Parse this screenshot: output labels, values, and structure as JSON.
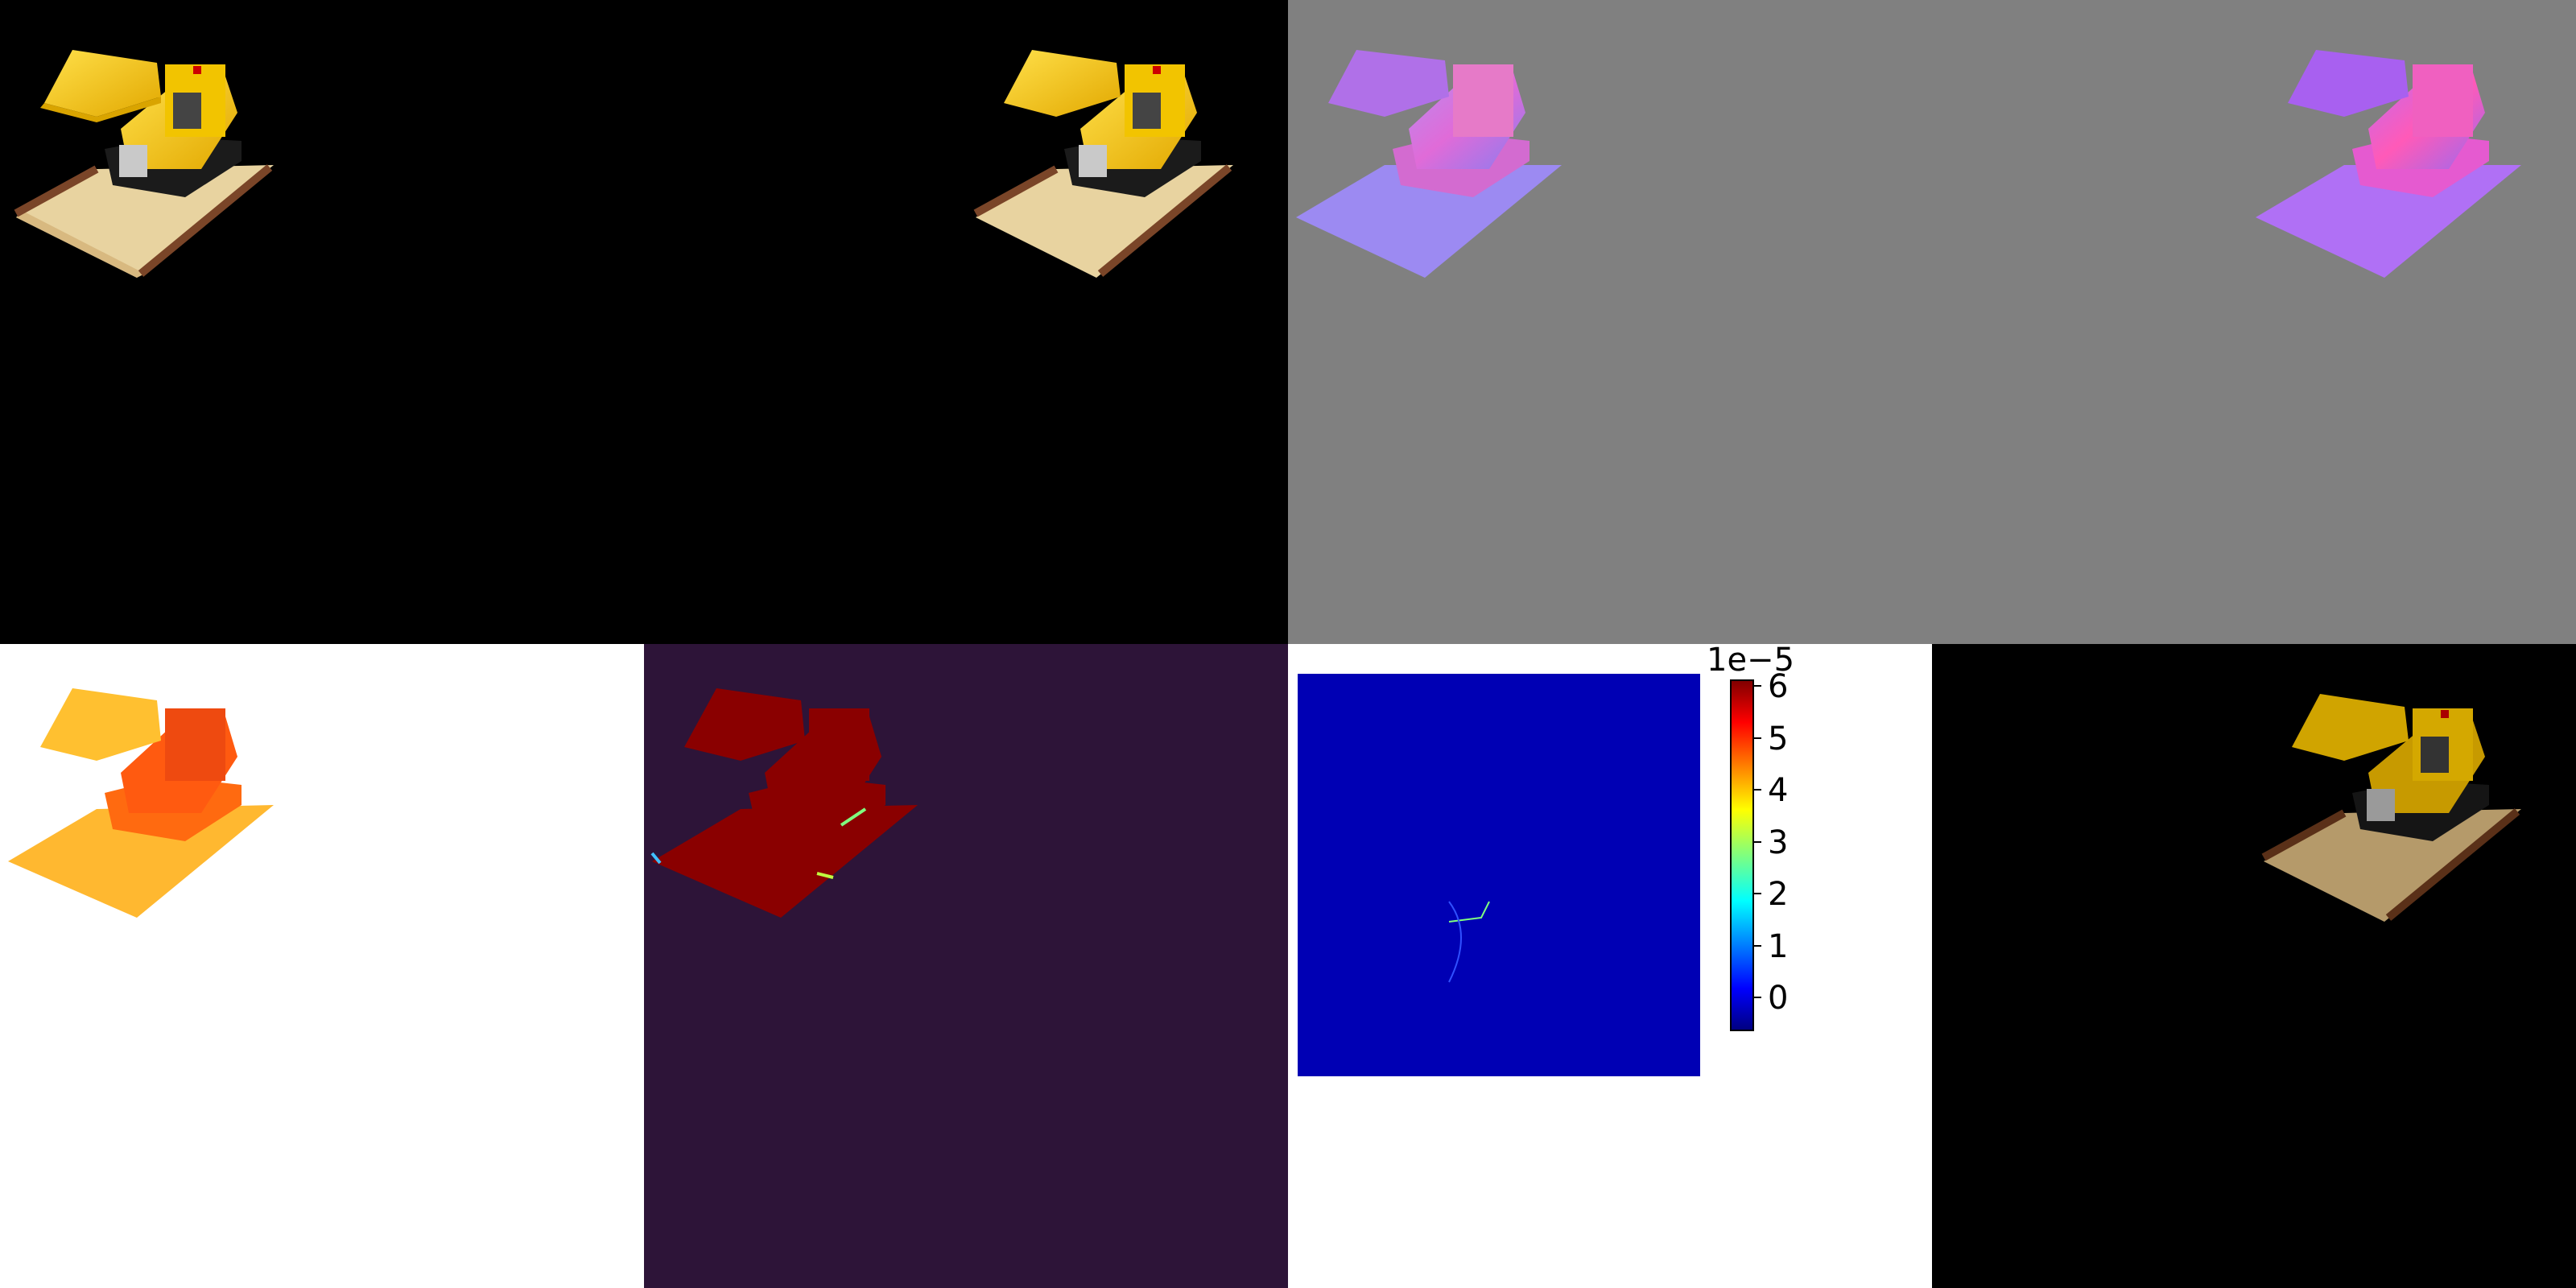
{
  "figure": {
    "panels": [
      {
        "name": "ground-truth-rgb",
        "background": "#000000"
      },
      {
        "name": "rendered-rgb",
        "background": "#000000"
      },
      {
        "name": "ground-truth-normals",
        "background": "#808080"
      },
      {
        "name": "predicted-normals",
        "background": "#808080"
      },
      {
        "name": "depth-map",
        "background": "#ffffff"
      },
      {
        "name": "heatmap-map",
        "background": "#2d1438"
      },
      {
        "name": "error-map",
        "background": "#ffffff"
      },
      {
        "name": "relit-rgb",
        "background": "#000000"
      }
    ],
    "colorbar": {
      "exponent_label": "1e−5",
      "ticks": [
        "6",
        "5",
        "4",
        "3",
        "2",
        "1",
        "0"
      ]
    }
  }
}
